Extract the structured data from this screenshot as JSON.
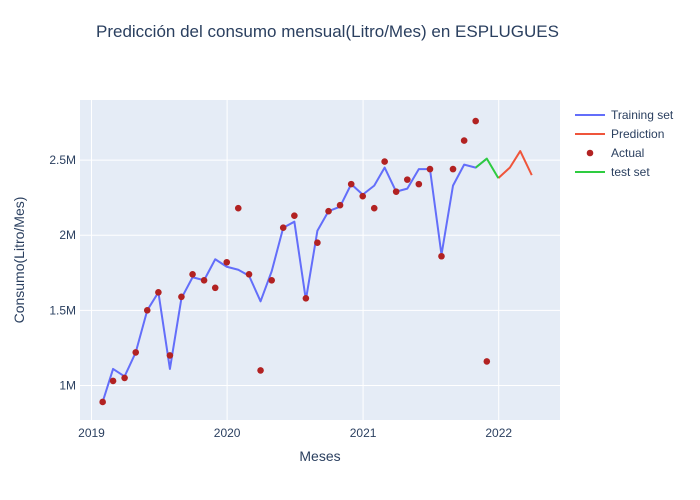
{
  "chart_data": {
    "type": "line",
    "title": "Predicción del consumo mensual(Litro/Mes) en ESPLUGUES",
    "xlabel": "Meses",
    "ylabel": "Consumo(Litro/Mes)",
    "xlim": [
      "2018-12-01",
      "2022-06-15"
    ],
    "ylim": [
      770000,
      2900000
    ],
    "x_ticks": [
      {
        "label": "2019",
        "date": "2019-01-01"
      },
      {
        "label": "2020",
        "date": "2020-01-01"
      },
      {
        "label": "2021",
        "date": "2021-01-01"
      },
      {
        "label": "2022",
        "date": "2022-01-01"
      }
    ],
    "y_ticks": [
      {
        "label": "1M",
        "value": 1000000
      },
      {
        "label": "1.5M",
        "value": 1500000
      },
      {
        "label": "2M",
        "value": 2000000
      },
      {
        "label": "2.5M",
        "value": 2500000
      }
    ],
    "grid": true,
    "legend_position": "top-right",
    "series": [
      {
        "name": "Training set",
        "mode": "lines",
        "color": "#636efa",
        "points": [
          [
            "2019-01-31",
            890000
          ],
          [
            "2019-02-28",
            1110000
          ],
          [
            "2019-03-31",
            1060000
          ],
          [
            "2019-04-30",
            1220000
          ],
          [
            "2019-05-31",
            1500000
          ],
          [
            "2019-06-30",
            1620000
          ],
          [
            "2019-07-31",
            1110000
          ],
          [
            "2019-08-31",
            1580000
          ],
          [
            "2019-09-30",
            1720000
          ],
          [
            "2019-10-31",
            1700000
          ],
          [
            "2019-11-30",
            1840000
          ],
          [
            "2019-12-31",
            1790000
          ],
          [
            "2020-01-31",
            1770000
          ],
          [
            "2020-02-29",
            1730000
          ],
          [
            "2020-03-31",
            1560000
          ],
          [
            "2020-04-30",
            1760000
          ],
          [
            "2020-05-31",
            2050000
          ],
          [
            "2020-06-30",
            2090000
          ],
          [
            "2020-07-31",
            1570000
          ],
          [
            "2020-08-31",
            2030000
          ],
          [
            "2020-09-30",
            2160000
          ],
          [
            "2020-10-31",
            2190000
          ],
          [
            "2020-11-30",
            2340000
          ],
          [
            "2020-12-31",
            2270000
          ],
          [
            "2021-01-31",
            2330000
          ],
          [
            "2021-02-28",
            2450000
          ],
          [
            "2021-03-31",
            2290000
          ],
          [
            "2021-04-30",
            2310000
          ],
          [
            "2021-05-31",
            2440000
          ],
          [
            "2021-06-30",
            2440000
          ],
          [
            "2021-07-31",
            1870000
          ],
          [
            "2021-08-31",
            2330000
          ],
          [
            "2021-09-30",
            2470000
          ],
          [
            "2021-10-31",
            2450000
          ],
          [
            "2021-11-30",
            2510000
          ]
        ]
      },
      {
        "name": "Prediction",
        "mode": "lines",
        "color": "#ef553b",
        "points": [
          [
            "2021-12-31",
            2380000
          ],
          [
            "2022-01-31",
            2450000
          ],
          [
            "2022-02-28",
            2560000
          ],
          [
            "2022-03-31",
            2400000
          ]
        ]
      },
      {
        "name": "Actual",
        "mode": "markers",
        "color": "#b22222",
        "points": [
          [
            "2019-01-31",
            890000
          ],
          [
            "2019-02-28",
            1030000
          ],
          [
            "2019-03-31",
            1050000
          ],
          [
            "2019-04-30",
            1220000
          ],
          [
            "2019-05-31",
            1500000
          ],
          [
            "2019-06-30",
            1620000
          ],
          [
            "2019-07-31",
            1200000
          ],
          [
            "2019-08-31",
            1590000
          ],
          [
            "2019-09-30",
            1740000
          ],
          [
            "2019-10-31",
            1700000
          ],
          [
            "2019-11-30",
            1650000
          ],
          [
            "2019-12-31",
            1820000
          ],
          [
            "2020-01-31",
            2180000
          ],
          [
            "2020-02-29",
            1740000
          ],
          [
            "2020-03-31",
            1100000
          ],
          [
            "2020-04-30",
            1700000
          ],
          [
            "2020-05-31",
            2050000
          ],
          [
            "2020-06-30",
            2130000
          ],
          [
            "2020-07-31",
            1580000
          ],
          [
            "2020-08-31",
            1950000
          ],
          [
            "2020-09-30",
            2160000
          ],
          [
            "2020-10-31",
            2200000
          ],
          [
            "2020-11-30",
            2340000
          ],
          [
            "2020-12-31",
            2260000
          ],
          [
            "2021-01-31",
            2180000
          ],
          [
            "2021-02-28",
            2490000
          ],
          [
            "2021-03-31",
            2290000
          ],
          [
            "2021-04-30",
            2370000
          ],
          [
            "2021-05-31",
            2340000
          ],
          [
            "2021-06-30",
            2440000
          ],
          [
            "2021-07-31",
            1860000
          ],
          [
            "2021-08-31",
            2440000
          ],
          [
            "2021-09-30",
            2630000
          ],
          [
            "2021-10-31",
            2760000
          ],
          [
            "2021-11-30",
            1160000
          ]
        ]
      },
      {
        "name": "test set",
        "mode": "lines",
        "color": "#2ecc40",
        "points": [
          [
            "2021-10-31",
            2450000
          ],
          [
            "2021-11-30",
            2510000
          ],
          [
            "2021-12-31",
            2380000
          ]
        ]
      }
    ]
  }
}
